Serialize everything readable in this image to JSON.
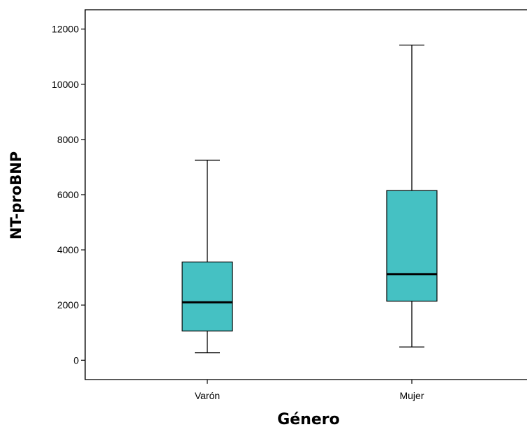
{
  "chart_data": {
    "type": "boxplot",
    "xlabel": "Género",
    "ylabel": "NT-proBNP",
    "ylim": [
      -700,
      12700
    ],
    "yticks": [
      0,
      2000,
      4000,
      6000,
      8000,
      10000,
      12000
    ],
    "categories": [
      "Varón",
      "Mujer"
    ],
    "boxes": [
      {
        "category": "Varón",
        "whisker_low": 270,
        "q1": 1060,
        "median": 2100,
        "q3": 3560,
        "whisker_high": 7250
      },
      {
        "category": "Mujer",
        "whisker_low": 480,
        "q1": 2140,
        "median": 3120,
        "q3": 6150,
        "whisker_high": 11420
      }
    ],
    "box_color": "#45C1C3",
    "grid": false
  }
}
